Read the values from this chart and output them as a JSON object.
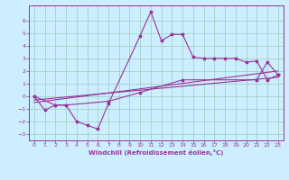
{
  "background_color": "#cceeff",
  "grid_color": "#99ccbb",
  "line_color": "#993399",
  "xlabel": "Windchill (Refroidissement éolien,°C)",
  "xlim": [
    -0.5,
    23.5
  ],
  "ylim": [
    -3.5,
    7.2
  ],
  "xticks": [
    0,
    1,
    2,
    3,
    4,
    5,
    6,
    7,
    8,
    9,
    10,
    11,
    12,
    13,
    14,
    15,
    16,
    17,
    18,
    19,
    20,
    21,
    22,
    23
  ],
  "yticks": [
    -3,
    -2,
    -1,
    0,
    1,
    2,
    3,
    4,
    5,
    6
  ],
  "series1_x": [
    0,
    1,
    2,
    3,
    4,
    5,
    6,
    7,
    10,
    11,
    12,
    13,
    14,
    15,
    16,
    17,
    18,
    19,
    20,
    21,
    22,
    23
  ],
  "series1_y": [
    0.0,
    -1.1,
    -0.7,
    -0.7,
    -2.0,
    -2.3,
    -2.6,
    -0.6,
    4.8,
    6.7,
    4.4,
    4.9,
    4.9,
    3.1,
    3.0,
    3.0,
    3.0,
    3.0,
    2.7,
    2.8,
    1.3,
    1.7
  ],
  "series2_x": [
    0,
    2,
    3,
    7,
    10,
    14,
    21,
    22,
    23
  ],
  "series2_y": [
    0.0,
    -0.7,
    -0.7,
    -0.4,
    0.3,
    1.3,
    1.3,
    2.7,
    1.7
  ],
  "series3_x": [
    0,
    23
  ],
  "series3_y": [
    -0.5,
    2.0
  ],
  "series4_x": [
    0,
    23
  ],
  "series4_y": [
    -0.3,
    1.5
  ]
}
